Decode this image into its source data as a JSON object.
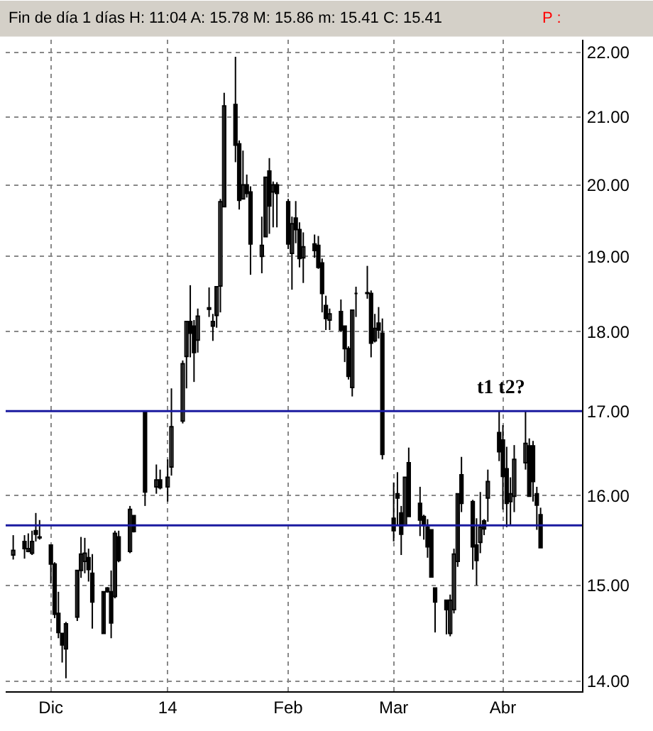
{
  "chart_data": {
    "type": "candlestick",
    "title": "Fin de día 1 días H: 11:04 A: 15.78 M: 15.86 m: 15.41 C: 15.41",
    "subtitle": "P :",
    "x": [
      "2013-11-22",
      "2013-11-25",
      "2013-11-26",
      "2013-11-27",
      "2013-11-28",
      "2013-11-29",
      "2013-12-02",
      "2013-12-03",
      "2013-12-04",
      "2013-12-05",
      "2013-12-06",
      "2013-12-09",
      "2013-12-10",
      "2013-12-11",
      "2013-12-12",
      "2013-12-13",
      "2013-12-16",
      "2013-12-17",
      "2013-12-18",
      "2013-12-19",
      "2013-12-20",
      "2013-12-23",
      "2013-12-24",
      "2013-12-27",
      "2013-12-30",
      "2013-12-31",
      "2014-01-02",
      "2014-01-03",
      "2014-01-06",
      "2014-01-07",
      "2014-01-08",
      "2014-01-09",
      "2014-01-10",
      "2014-01-13",
      "2014-01-14",
      "2014-01-15",
      "2014-01-16",
      "2014-01-17",
      "2014-01-20",
      "2014-01-21",
      "2014-01-22",
      "2014-01-23",
      "2014-01-24",
      "2014-01-27",
      "2014-01-28",
      "2014-01-29",
      "2014-01-30",
      "2014-01-31",
      "2014-02-03",
      "2014-02-04",
      "2014-02-05",
      "2014-02-06",
      "2014-02-07",
      "2014-02-10",
      "2014-02-11",
      "2014-02-12",
      "2014-02-13",
      "2014-02-14",
      "2014-02-17",
      "2014-02-18",
      "2014-02-19",
      "2014-02-20",
      "2014-02-21",
      "2014-02-24",
      "2014-02-25",
      "2014-02-26",
      "2014-02-27",
      "2014-02-28",
      "2014-03-03",
      "2014-03-04",
      "2014-03-05",
      "2014-03-06",
      "2014-03-07",
      "2014-03-10",
      "2014-03-11",
      "2014-03-12",
      "2014-03-13",
      "2014-03-14",
      "2014-03-17",
      "2014-03-18",
      "2014-03-19",
      "2014-03-20",
      "2014-03-21",
      "2014-03-24",
      "2014-03-25",
      "2014-03-26",
      "2014-03-27",
      "2014-03-28",
      "2014-03-31",
      "2014-04-01",
      "2014-04-02",
      "2014-04-03",
      "2014-04-04",
      "2014-04-07",
      "2014-04-08",
      "2014-04-09",
      "2014-04-10",
      "2014-04-11"
    ],
    "series": [
      {
        "color": "#000000",
        "ohlc": [
          [
            15.33,
            15.55,
            15.28,
            15.38
          ],
          [
            15.48,
            15.55,
            15.29,
            15.4
          ],
          [
            15.37,
            15.57,
            15.36,
            15.4
          ],
          [
            15.35,
            15.6,
            15.33,
            15.48
          ],
          [
            15.6,
            15.8,
            15.48,
            15.56
          ],
          [
            15.52,
            15.72,
            15.5,
            15.53
          ],
          [
            15.44,
            15.44,
            15.02,
            15.23
          ],
          [
            15.23,
            15.25,
            14.65,
            14.69
          ],
          [
            14.7,
            14.93,
            14.44,
            14.5
          ],
          [
            14.49,
            14.49,
            14.19,
            14.37
          ],
          [
            14.33,
            14.61,
            14.03,
            14.59
          ],
          [
            14.66,
            15.16,
            14.62,
            15.16
          ],
          [
            15.16,
            15.53,
            15.08,
            15.34
          ],
          [
            15.26,
            15.52,
            15.13,
            15.35
          ],
          [
            15.3,
            15.4,
            15.04,
            15.17
          ],
          [
            15.13,
            15.34,
            14.54,
            14.82
          ],
          [
            14.49,
            14.93,
            14.49,
            14.93
          ],
          [
            14.97,
            14.98,
            14.92,
            14.93
          ],
          [
            14.93,
            15.16,
            14.44,
            14.6
          ],
          [
            14.88,
            15.6,
            14.86,
            15.57
          ],
          [
            15.53,
            15.6,
            15.25,
            15.27
          ],
          [
            15.37,
            15.88,
            15.35,
            15.84
          ],
          [
            15.77,
            15.77,
            15.58,
            15.59
          ],
          [
            16.99,
            16.99,
            15.88,
            16.04
          ],
          [
            16.1,
            16.36,
            16.02,
            16.18
          ],
          [
            16.18,
            16.3,
            16.07,
            16.09
          ],
          [
            16.1,
            16.42,
            15.93,
            16.21
          ],
          [
            16.33,
            17.28,
            16.23,
            16.81
          ],
          [
            16.88,
            17.63,
            16.85,
            17.59
          ],
          [
            17.68,
            18.13,
            17.28,
            18.13
          ],
          [
            18.13,
            18.61,
            17.67,
            17.98
          ],
          [
            18.07,
            18.15,
            17.36,
            17.73
          ],
          [
            17.89,
            18.3,
            17.73,
            18.2
          ],
          [
            18.29,
            18.58,
            18.19,
            18.31
          ],
          [
            18.07,
            18.23,
            17.88,
            18.13
          ],
          [
            18.21,
            18.59,
            18.05,
            18.59
          ],
          [
            18.6,
            19.8,
            18.25,
            19.76
          ],
          [
            19.69,
            21.37,
            19.69,
            21.17
          ],
          [
            21.19,
            21.93,
            20.33,
            20.58
          ],
          [
            20.6,
            20.65,
            19.65,
            19.78
          ],
          [
            19.8,
            20.5,
            19.8,
            20.0
          ],
          [
            20.0,
            20.15,
            19.82,
            19.88
          ],
          [
            19.9,
            19.98,
            18.75,
            19.17
          ],
          [
            19.0,
            19.55,
            18.77,
            19.15
          ],
          [
            19.27,
            20.11,
            19.27,
            20.11
          ],
          [
            20.2,
            20.39,
            19.31,
            19.7
          ],
          [
            19.9,
            20.05,
            19.4,
            20.0
          ],
          [
            20.0,
            20.04,
            19.4,
            19.88
          ],
          [
            19.76,
            19.8,
            19.1,
            19.17
          ],
          [
            19.04,
            19.55,
            18.55,
            19.45
          ],
          [
            19.53,
            19.77,
            19.18,
            19.37
          ],
          [
            19.37,
            19.47,
            18.85,
            18.97
          ],
          [
            18.98,
            19.33,
            18.64,
            19.13
          ],
          [
            19.17,
            19.3,
            18.98,
            19.08
          ],
          [
            19.15,
            19.28,
            18.83,
            18.85
          ],
          [
            18.91,
            18.97,
            18.25,
            18.5
          ],
          [
            18.34,
            18.47,
            18.02,
            18.17
          ],
          [
            18.15,
            18.3,
            18.02,
            18.23
          ],
          [
            18.26,
            18.42,
            18.0,
            18.02
          ],
          [
            18.07,
            18.07,
            17.61,
            17.78
          ],
          [
            17.78,
            17.81,
            17.39,
            17.43
          ],
          [
            17.29,
            18.28,
            17.18,
            18.28
          ],
          [
            18.5,
            18.59,
            18.19,
            18.5
          ],
          [
            18.51,
            18.87,
            18.43,
            18.5
          ],
          [
            18.5,
            18.54,
            17.67,
            17.85
          ],
          [
            17.88,
            18.23,
            17.86,
            18.04
          ],
          [
            18.11,
            18.32,
            17.91,
            18.02
          ],
          [
            17.98,
            18.17,
            16.42,
            16.48
          ],
          [
            15.74,
            16.15,
            15.48,
            15.6
          ],
          [
            16.02,
            16.27,
            15.66,
            15.97
          ],
          [
            15.8,
            15.88,
            15.33,
            15.56
          ],
          [
            15.66,
            16.21,
            15.66,
            16.21
          ],
          [
            16.38,
            16.56,
            15.76,
            15.76
          ],
          [
            15.91,
            16.1,
            15.54,
            15.72
          ],
          [
            15.76,
            15.78,
            15.5,
            15.66
          ],
          [
            15.64,
            15.73,
            15.3,
            15.42
          ],
          [
            15.61,
            15.61,
            15.09,
            15.09
          ],
          [
            14.97,
            14.97,
            14.5,
            14.82
          ],
          [
            14.84,
            14.84,
            14.48,
            14.74
          ],
          [
            14.49,
            14.9,
            14.46,
            14.84
          ],
          [
            14.74,
            15.4,
            14.7,
            15.34
          ],
          [
            15.26,
            16.02,
            15.2,
            16.02
          ],
          [
            16.24,
            16.45,
            15.81,
            15.91
          ],
          [
            15.93,
            15.95,
            15.17,
            15.42
          ],
          [
            15.44,
            15.74,
            15.0,
            15.27
          ],
          [
            15.47,
            16.04,
            15.35,
            15.64
          ],
          [
            15.62,
            15.73,
            15.55,
            15.71
          ],
          [
            15.97,
            16.3,
            15.7,
            16.16
          ],
          [
            16.74,
            17.0,
            16.4,
            16.51
          ],
          [
            16.65,
            16.83,
            15.84,
            16.22
          ],
          [
            16.31,
            16.57,
            15.64,
            15.91
          ],
          [
            15.93,
            16.21,
            15.66,
            16.02
          ],
          [
            15.99,
            16.59,
            15.81,
            16.42
          ],
          [
            16.38,
            17.0,
            16.3,
            16.61
          ],
          [
            16.58,
            16.67,
            15.99,
            15.99
          ],
          [
            16.58,
            16.64,
            15.93,
            16.16
          ],
          [
            16.02,
            16.1,
            15.61,
            15.89
          ],
          [
            15.78,
            15.86,
            15.41,
            15.41
          ]
        ]
      }
    ],
    "xlim": [
      "2013-11-20",
      "2014-04-22"
    ],
    "xticks": [
      {
        "value": "2013-12-02",
        "label": "Dic"
      },
      {
        "value": "2014-01-02",
        "label": "14"
      },
      {
        "value": "2014-02-03",
        "label": "Feb"
      },
      {
        "value": "2014-03-03",
        "label": "Mar"
      },
      {
        "value": "2014-04-01",
        "label": "Abr"
      }
    ],
    "ylim": [
      13.9,
      22.2
    ],
    "yticks": [
      {
        "value": 14,
        "label": "14.00"
      },
      {
        "value": 15,
        "label": "15.00"
      },
      {
        "value": 16,
        "label": "16.00"
      },
      {
        "value": 17,
        "label": "17.00"
      },
      {
        "value": 18,
        "label": "18.00"
      },
      {
        "value": 19,
        "label": "19.00"
      },
      {
        "value": 20,
        "label": "20.00"
      },
      {
        "value": 21,
        "label": "21.00"
      },
      {
        "value": 22,
        "label": "22.00"
      }
    ],
    "log": true,
    "grid": true,
    "ref_lines": [
      {
        "axis": "y",
        "value": 17.0,
        "color": "#1a1aa0"
      },
      {
        "axis": "y",
        "value": 15.66,
        "color": "#1a1aa0"
      }
    ],
    "annotations": [
      "t1 t2?"
    ]
  }
}
